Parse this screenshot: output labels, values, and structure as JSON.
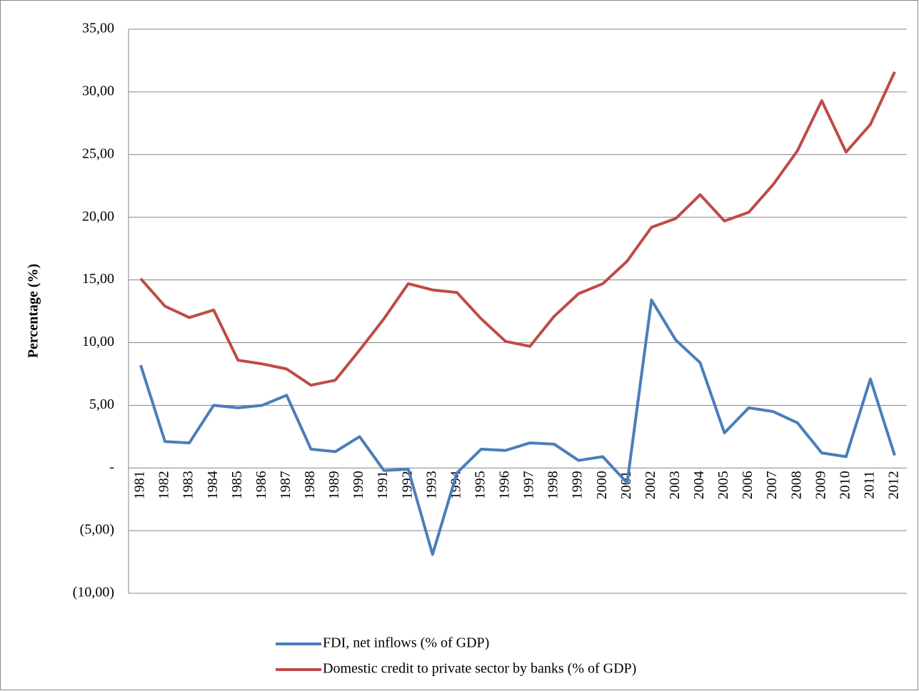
{
  "chart_data": {
    "type": "line",
    "y_label": "Percentage (%)",
    "categories": [
      "1981",
      "1982",
      "1983",
      "1984",
      "1985",
      "1986",
      "1987",
      "1988",
      "1989",
      "1990",
      "1991",
      "1992",
      "1993",
      "1994",
      "1995",
      "1996",
      "1997",
      "1998",
      "1999",
      "2000",
      "2001",
      "2002",
      "2003",
      "2004",
      "2005",
      "2006",
      "2007",
      "2008",
      "2009",
      "2010",
      "2011",
      "2012"
    ],
    "series": [
      {
        "name": "FDI, net inflows (% of GDP)",
        "color": "#4a7ebb",
        "values": [
          8.2,
          2.1,
          2.0,
          5.0,
          4.8,
          5.0,
          5.8,
          1.5,
          1.3,
          2.5,
          -0.2,
          -0.1,
          -6.9,
          -0.4,
          1.5,
          1.4,
          2.0,
          1.9,
          0.6,
          0.9,
          -1.2,
          13.4,
          10.2,
          8.4,
          2.8,
          4.8,
          4.5,
          3.6,
          1.2,
          0.9,
          7.1,
          1.0
        ]
      },
      {
        "name": "Domestic credit to private sector by banks (% of GDP)",
        "color": "#be4b48",
        "values": [
          15.1,
          12.9,
          12.0,
          12.6,
          8.6,
          8.3,
          7.9,
          6.6,
          7.0,
          9.4,
          11.9,
          14.7,
          14.2,
          14.0,
          11.9,
          10.1,
          9.7,
          12.1,
          13.9,
          14.7,
          16.5,
          19.2,
          19.9,
          21.8,
          19.7,
          20.4,
          22.6,
          25.3,
          29.3,
          25.2,
          27.4,
          31.6
        ]
      }
    ],
    "ylim": [
      -10,
      35
    ],
    "yticks": [
      {
        "value": -10,
        "label": "(10,00)"
      },
      {
        "value": -5,
        "label": "(5,00)"
      },
      {
        "value": 0,
        "label": "-"
      },
      {
        "value": 5,
        "label": "5,00"
      },
      {
        "value": 10,
        "label": "10,00"
      },
      {
        "value": 15,
        "label": "15,00"
      },
      {
        "value": 20,
        "label": "20,00"
      },
      {
        "value": 25,
        "label": "25,00"
      },
      {
        "value": 30,
        "label": "30,00"
      },
      {
        "value": 35,
        "label": "35,00"
      }
    ],
    "grid": true
  }
}
